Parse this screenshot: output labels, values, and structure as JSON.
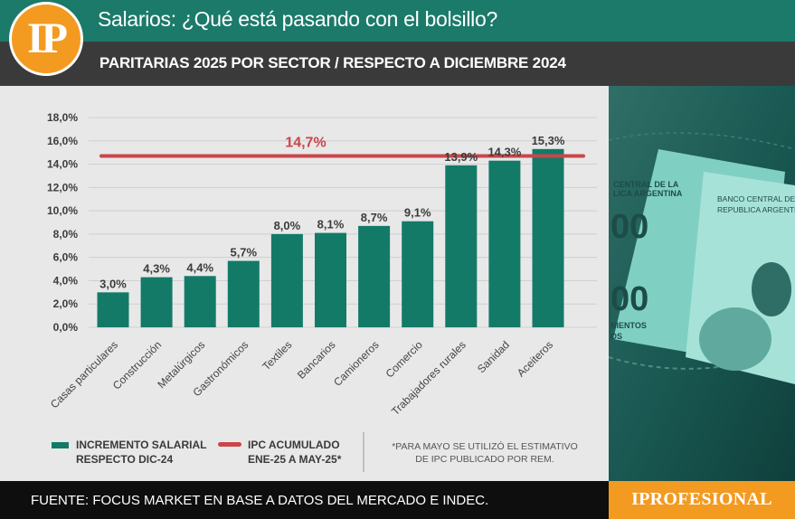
{
  "header": {
    "logo": "IP",
    "title": "Salarios: ¿Qué está pasando con el bolsillo?",
    "subtitle": "PARITARIAS 2025 POR SECTOR  /  RESPECTO A DICIEMBRE 2024"
  },
  "footer": {
    "source": "FUENTE: FOCUS MARKET EN BASE A DATOS DEL MERCADO E INDEC.",
    "brand": "IPROFESIONAL"
  },
  "legend": {
    "bar_label_1": "INCREMENTO SALARIAL",
    "bar_label_2": "RESPECTO DIC-24",
    "line_label_1": "IPC ACUMULADO",
    "line_label_2": "ENE-25 A MAY-25*",
    "note_1": "*PARA MAYO SE UTILIZÓ EL ESTIMATIVO",
    "note_2": "DE IPC PUBLICADO POR REM."
  },
  "photo": {
    "banknote_text_1": "CENTRAL DE LA",
    "banknote_text_2": "LICA ARGENTINA",
    "banknote_text_3": "BANCO CENTRAL DE LA",
    "banknote_text_4": "REPUBLICA ARGENTIN",
    "banknote_digits_1": "00",
    "banknote_digits_2": "00",
    "banknote_text_5": "NIENTOS",
    "banknote_text_6": "OS"
  },
  "colors": {
    "bar": "#137a68",
    "reference_line": "#c9464a",
    "header": "#1b7a6a",
    "subheader": "#3b3a3a",
    "accent": "#f39a21"
  },
  "chart_data": {
    "type": "bar",
    "categories": [
      "Casas particulares",
      "Construcción",
      "Metalúrgicos",
      "Gastronómicos",
      "Textiles",
      "Bancarios",
      "Camioneros",
      "Comercio",
      "Trabajadores rurales",
      "Sanidad",
      "Aceiteros"
    ],
    "values": [
      3.0,
      4.3,
      4.4,
      5.7,
      8.0,
      8.1,
      8.7,
      9.1,
      13.9,
      14.3,
      15.3
    ],
    "value_labels": [
      "3,0%",
      "4,3%",
      "4,4%",
      "5,7%",
      "8,0%",
      "8,1%",
      "8,7%",
      "9,1%",
      "13,9%",
      "14,3%",
      "15,3%"
    ],
    "reference_line": {
      "value": 14.7,
      "label": "14,7%"
    },
    "y_ticks": [
      "0,0%",
      "2,0%",
      "4,0%",
      "6,0%",
      "8,0%",
      "10,0%",
      "12,0%",
      "14,0%",
      "16,0%",
      "18,0%"
    ],
    "ylim": [
      0,
      18
    ],
    "grid": true,
    "legend_position": "bottom-left"
  }
}
